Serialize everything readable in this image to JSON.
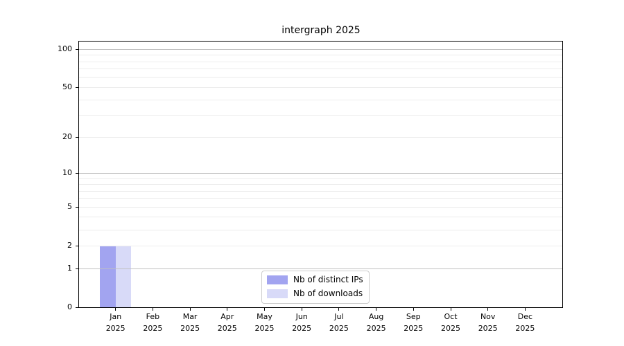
{
  "chart_data": {
    "type": "bar",
    "title": "intergraph 2025",
    "categories": [
      "Jan",
      "Feb",
      "Mar",
      "Apr",
      "May",
      "Jun",
      "Jul",
      "Aug",
      "Sep",
      "Oct",
      "Nov",
      "Dec"
    ],
    "category_year": "2025",
    "series": [
      {
        "name": "Nb of distinct IPs",
        "color": "#a2a4f0",
        "values": [
          2,
          0,
          0,
          0,
          0,
          0,
          0,
          0,
          0,
          0,
          0,
          0
        ]
      },
      {
        "name": "Nb of downloads",
        "color": "#d8daf8",
        "values": [
          2,
          0,
          0,
          0,
          0,
          0,
          0,
          0,
          0,
          0,
          0,
          0
        ]
      }
    ],
    "yticks": [
      0,
      1,
      2,
      5,
      10,
      20,
      50,
      100
    ],
    "grid_major_values": [
      1,
      10,
      100
    ],
    "grid_minor_values": [
      2,
      3,
      4,
      5,
      6,
      7,
      8,
      9,
      20,
      30,
      40,
      50,
      60,
      70,
      80,
      90
    ],
    "scale": "log10(1+y)",
    "ylim": [
      0,
      115
    ],
    "grid": "on",
    "legend_position": "lower center",
    "xlabel": "",
    "ylabel": ""
  }
}
